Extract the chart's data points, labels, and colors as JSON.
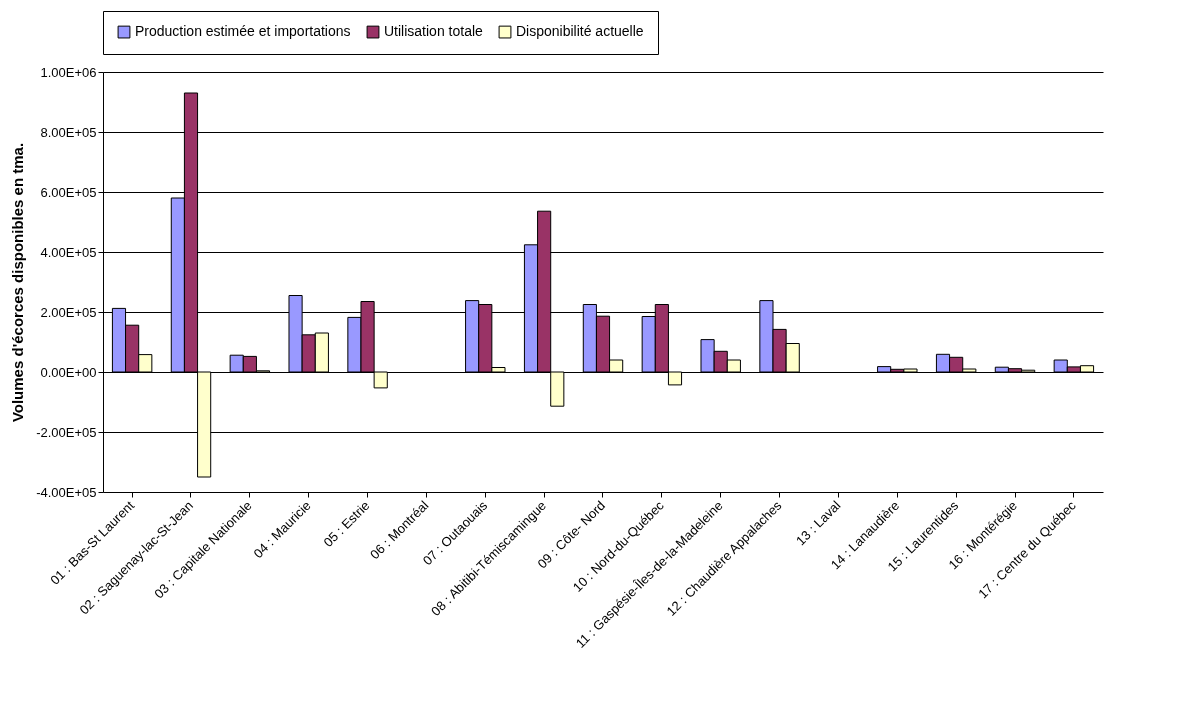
{
  "chart_data": {
    "type": "bar",
    "ylabel": "Volumes d'écorces disponibles en tma.",
    "categories": [
      "01 : Bas-St Laurent",
      "02 : Saguenay-lac-St-Jean",
      "03 : Capitale Nationale",
      "04 : Mauricie",
      "05 : Estrie",
      "06 : Montréal",
      "07 : Outaouais",
      "08 : Abitibi-Témiscamingue",
      "09 : Côte- Nord",
      "10 : Nord-du-Québec",
      "11 : Gaspésie-Îles-de-la-Madeleine",
      "12 : Chaudière Appalaches",
      "13 : Laval",
      "14 : Lanaudière",
      "15 : Laurentides",
      "16 : Montérégie",
      "17 : Centre du Québec"
    ],
    "series": [
      {
        "name": "Production estimée et importations",
        "color": "#9999ff",
        "values": [
          212000,
          580000,
          56000,
          255000,
          182000,
          null,
          238000,
          424000,
          225000,
          185000,
          108000,
          238000,
          null,
          18000,
          59000,
          16000,
          40000
        ]
      },
      {
        "name": "Utilisation totale",
        "color": "#993366",
        "values": [
          156000,
          930000,
          52000,
          124000,
          235000,
          null,
          225000,
          536000,
          186000,
          225000,
          69000,
          142000,
          null,
          9000,
          49000,
          11000,
          17000
        ]
      },
      {
        "name": "Disponibilité actuelle",
        "color": "#ffffcc",
        "values": [
          58000,
          -350000,
          4000,
          130000,
          -53000,
          null,
          15000,
          -114000,
          40000,
          -43000,
          40000,
          95000,
          null,
          10000,
          10000,
          6000,
          21000
        ]
      }
    ],
    "ylim": [
      -400000,
      1000000
    ],
    "yticks": [
      {
        "value": -400000,
        "label": "-4.00E+05"
      },
      {
        "value": -200000,
        "label": "-2.00E+05"
      },
      {
        "value": 0,
        "label": "0.00E+00"
      },
      {
        "value": 200000,
        "label": "2.00E+05"
      },
      {
        "value": 400000,
        "label": "4.00E+05"
      },
      {
        "value": 600000,
        "label": "6.00E+05"
      },
      {
        "value": 800000,
        "label": "8.00E+05"
      },
      {
        "value": 1000000,
        "label": "1.00E+06"
      }
    ],
    "grid": "y",
    "legend": "top"
  }
}
